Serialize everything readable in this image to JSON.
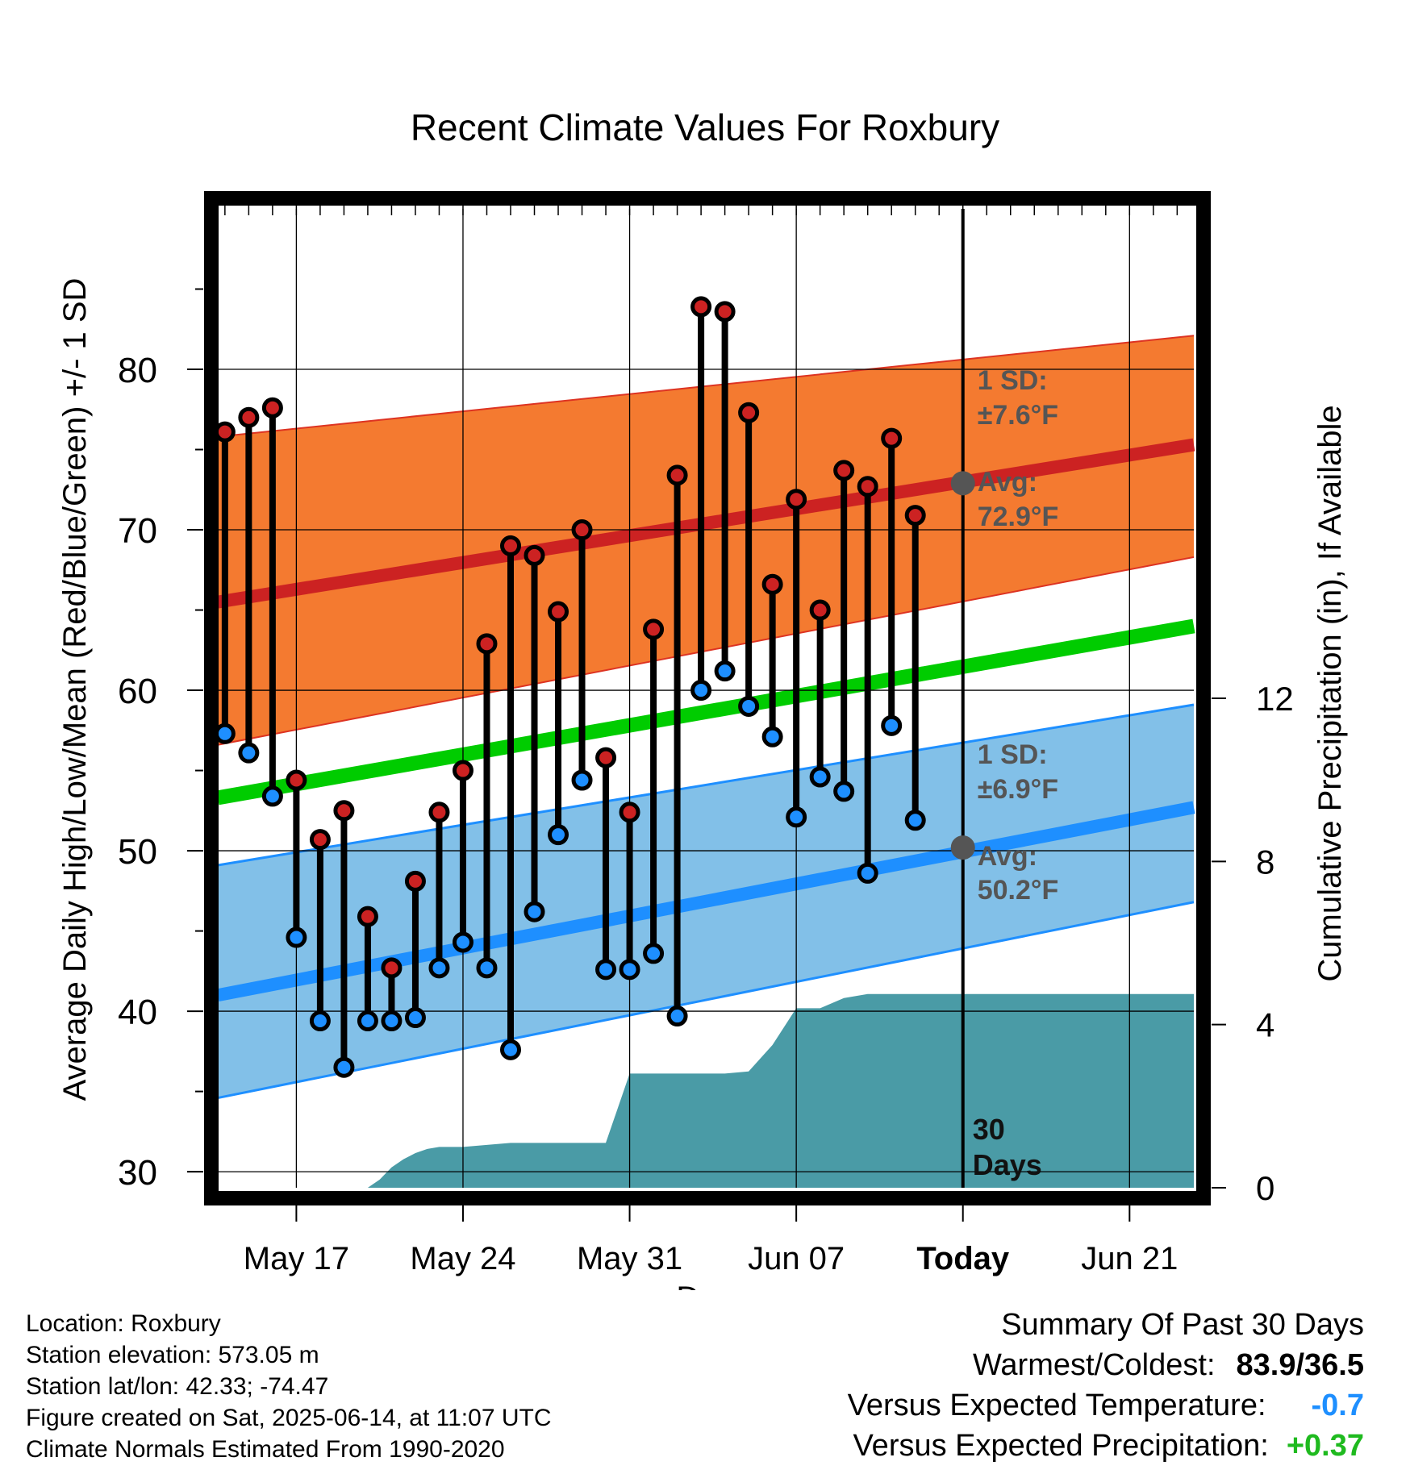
{
  "chart_data": {
    "type": "line",
    "title": "Recent Climate Values For Roxbury",
    "xlabel": "Day",
    "ylabel": "Average Daily High/Low/Mean (Red/Blue/Green) +/- 1 SD",
    "y2label": "Cumulative Precipitation (in), If Available",
    "ylim": [
      29,
      90
    ],
    "y2lim": [
      0,
      24
    ],
    "x_ticks": [
      {
        "date": "2025-05-17",
        "label": "May 17"
      },
      {
        "date": "2025-05-24",
        "label": "May 24"
      },
      {
        "date": "2025-05-31",
        "label": "May 31"
      },
      {
        "date": "2025-06-07",
        "label": "Jun 07"
      },
      {
        "date": "2025-06-14",
        "label": "Today"
      },
      {
        "date": "2025-06-21",
        "label": "Jun 21"
      }
    ],
    "y_ticks": [
      30,
      40,
      50,
      60,
      70,
      80
    ],
    "y2_ticks": [
      0,
      4,
      8,
      12
    ],
    "xlim": [
      "2025-05-13.7",
      "2025-06-23.7"
    ],
    "today": "2025-06-14",
    "window_label": [
      "30",
      "Days"
    ],
    "normals": {
      "high_avg": {
        "start": 65.5,
        "end": 75.3
      },
      "high_sd_upper": {
        "start": 75.8,
        "end": 82.1
      },
      "high_sd_lower": {
        "start": 56.6,
        "end": 68.3
      },
      "low_avg": {
        "start": 41.0,
        "end": 52.7
      },
      "low_sd_upper": {
        "start": 49.1,
        "end": 59.1
      },
      "low_sd_lower": {
        "start": 34.6,
        "end": 46.8
      },
      "mean_avg": {
        "start": 53.3,
        "end": 64.0
      }
    },
    "annotations": {
      "high": {
        "sd_label": "1 SD:",
        "sd_value": "±7.6°F",
        "avg_label": "Avg:",
        "avg_value": "72.9°F",
        "today_avg": 72.9
      },
      "low": {
        "sd_label": "1 SD:",
        "sd_value": "±6.9°F",
        "avg_label": "Avg:",
        "avg_value": "50.2°F",
        "today_avg": 50.2
      }
    },
    "series": [
      {
        "name": "High",
        "color": "#cc2222",
        "x": [
          "2025-05-14",
          "2025-05-15",
          "2025-05-16",
          "2025-05-17",
          "2025-05-18",
          "2025-05-19",
          "2025-05-20",
          "2025-05-21",
          "2025-05-22",
          "2025-05-23",
          "2025-05-24",
          "2025-05-25",
          "2025-05-26",
          "2025-05-27",
          "2025-05-28",
          "2025-05-29",
          "2025-05-30",
          "2025-05-31",
          "2025-06-01",
          "2025-06-02",
          "2025-06-03",
          "2025-06-04",
          "2025-06-05",
          "2025-06-06",
          "2025-06-07",
          "2025-06-08",
          "2025-06-09",
          "2025-06-10",
          "2025-06-11",
          "2025-06-12",
          "2025-06-13"
        ],
        "values": [
          76.1,
          77.0,
          77.6,
          54.4,
          50.7,
          52.5,
          45.9,
          42.7,
          48.1,
          52.4,
          55.0,
          62.9,
          69.0,
          68.4,
          64.9,
          70.0,
          55.8,
          52.4,
          63.8,
          73.4,
          83.9,
          83.6,
          77.3,
          66.6,
          71.9,
          65.0,
          73.7,
          72.7,
          75.7,
          70.9,
          null
        ]
      },
      {
        "name": "Low",
        "color": "#1e8fff",
        "x": [
          "2025-05-14",
          "2025-05-15",
          "2025-05-16",
          "2025-05-17",
          "2025-05-18",
          "2025-05-19",
          "2025-05-20",
          "2025-05-21",
          "2025-05-22",
          "2025-05-23",
          "2025-05-24",
          "2025-05-25",
          "2025-05-26",
          "2025-05-27",
          "2025-05-28",
          "2025-05-29",
          "2025-05-30",
          "2025-05-31",
          "2025-06-01",
          "2025-06-02",
          "2025-06-03",
          "2025-06-04",
          "2025-06-05",
          "2025-06-06",
          "2025-06-07",
          "2025-06-08",
          "2025-06-09",
          "2025-06-10",
          "2025-06-11",
          "2025-06-12",
          "2025-06-13"
        ],
        "values": [
          57.3,
          56.1,
          53.4,
          44.6,
          39.4,
          36.5,
          39.4,
          39.4,
          39.6,
          42.7,
          44.3,
          42.7,
          37.6,
          46.2,
          51.0,
          54.4,
          42.6,
          42.6,
          43.6,
          39.7,
          60.0,
          61.2,
          59.0,
          57.1,
          52.1,
          54.6,
          53.7,
          48.6,
          57.8,
          51.9,
          null
        ]
      }
    ],
    "precipitation": {
      "x": [
        "2025-05-14",
        "2025-05-20",
        "2025-05-20.5",
        "2025-05-21",
        "2025-05-21.5",
        "2025-05-22",
        "2025-05-22.5",
        "2025-05-23",
        "2025-05-24",
        "2025-05-25",
        "2025-05-26",
        "2025-05-27",
        "2025-05-28",
        "2025-05-29",
        "2025-05-30",
        "2025-05-31",
        "2025-06-01",
        "2025-06-02",
        "2025-06-04",
        "2025-06-05",
        "2025-06-06",
        "2025-06-07",
        "2025-06-08",
        "2025-06-09",
        "2025-06-10",
        "2025-06-23.7"
      ],
      "values": [
        0,
        0,
        0.2,
        0.5,
        0.7,
        0.85,
        0.95,
        1.0,
        1.0,
        1.05,
        1.1,
        1.1,
        1.1,
        1.1,
        1.1,
        2.8,
        2.8,
        2.8,
        2.8,
        2.85,
        3.5,
        4.4,
        4.4,
        4.65,
        4.75,
        4.75
      ]
    }
  },
  "info": [
    "Location: Roxbury",
    "Station elevation: 573.05 m",
    "Station lat/lon: 42.33; -74.47",
    "Figure created on Sat, 2025-06-14, at 11:07 UTC",
    "Climate Normals Estimated From 1990-2020"
  ],
  "summary": {
    "heading": "Summary Of Past 30 Days",
    "warm_cold_label": "Warmest/Coldest:",
    "warm_cold_value": "83.9/36.5",
    "temp_label": "Versus Expected Temperature:",
    "temp_value": "-0.7",
    "precip_label": "Versus Expected Precipitation:",
    "precip_value": "+0.37",
    "colors": {
      "temp": "#1e8fff",
      "precip": "#1fba1f"
    }
  }
}
